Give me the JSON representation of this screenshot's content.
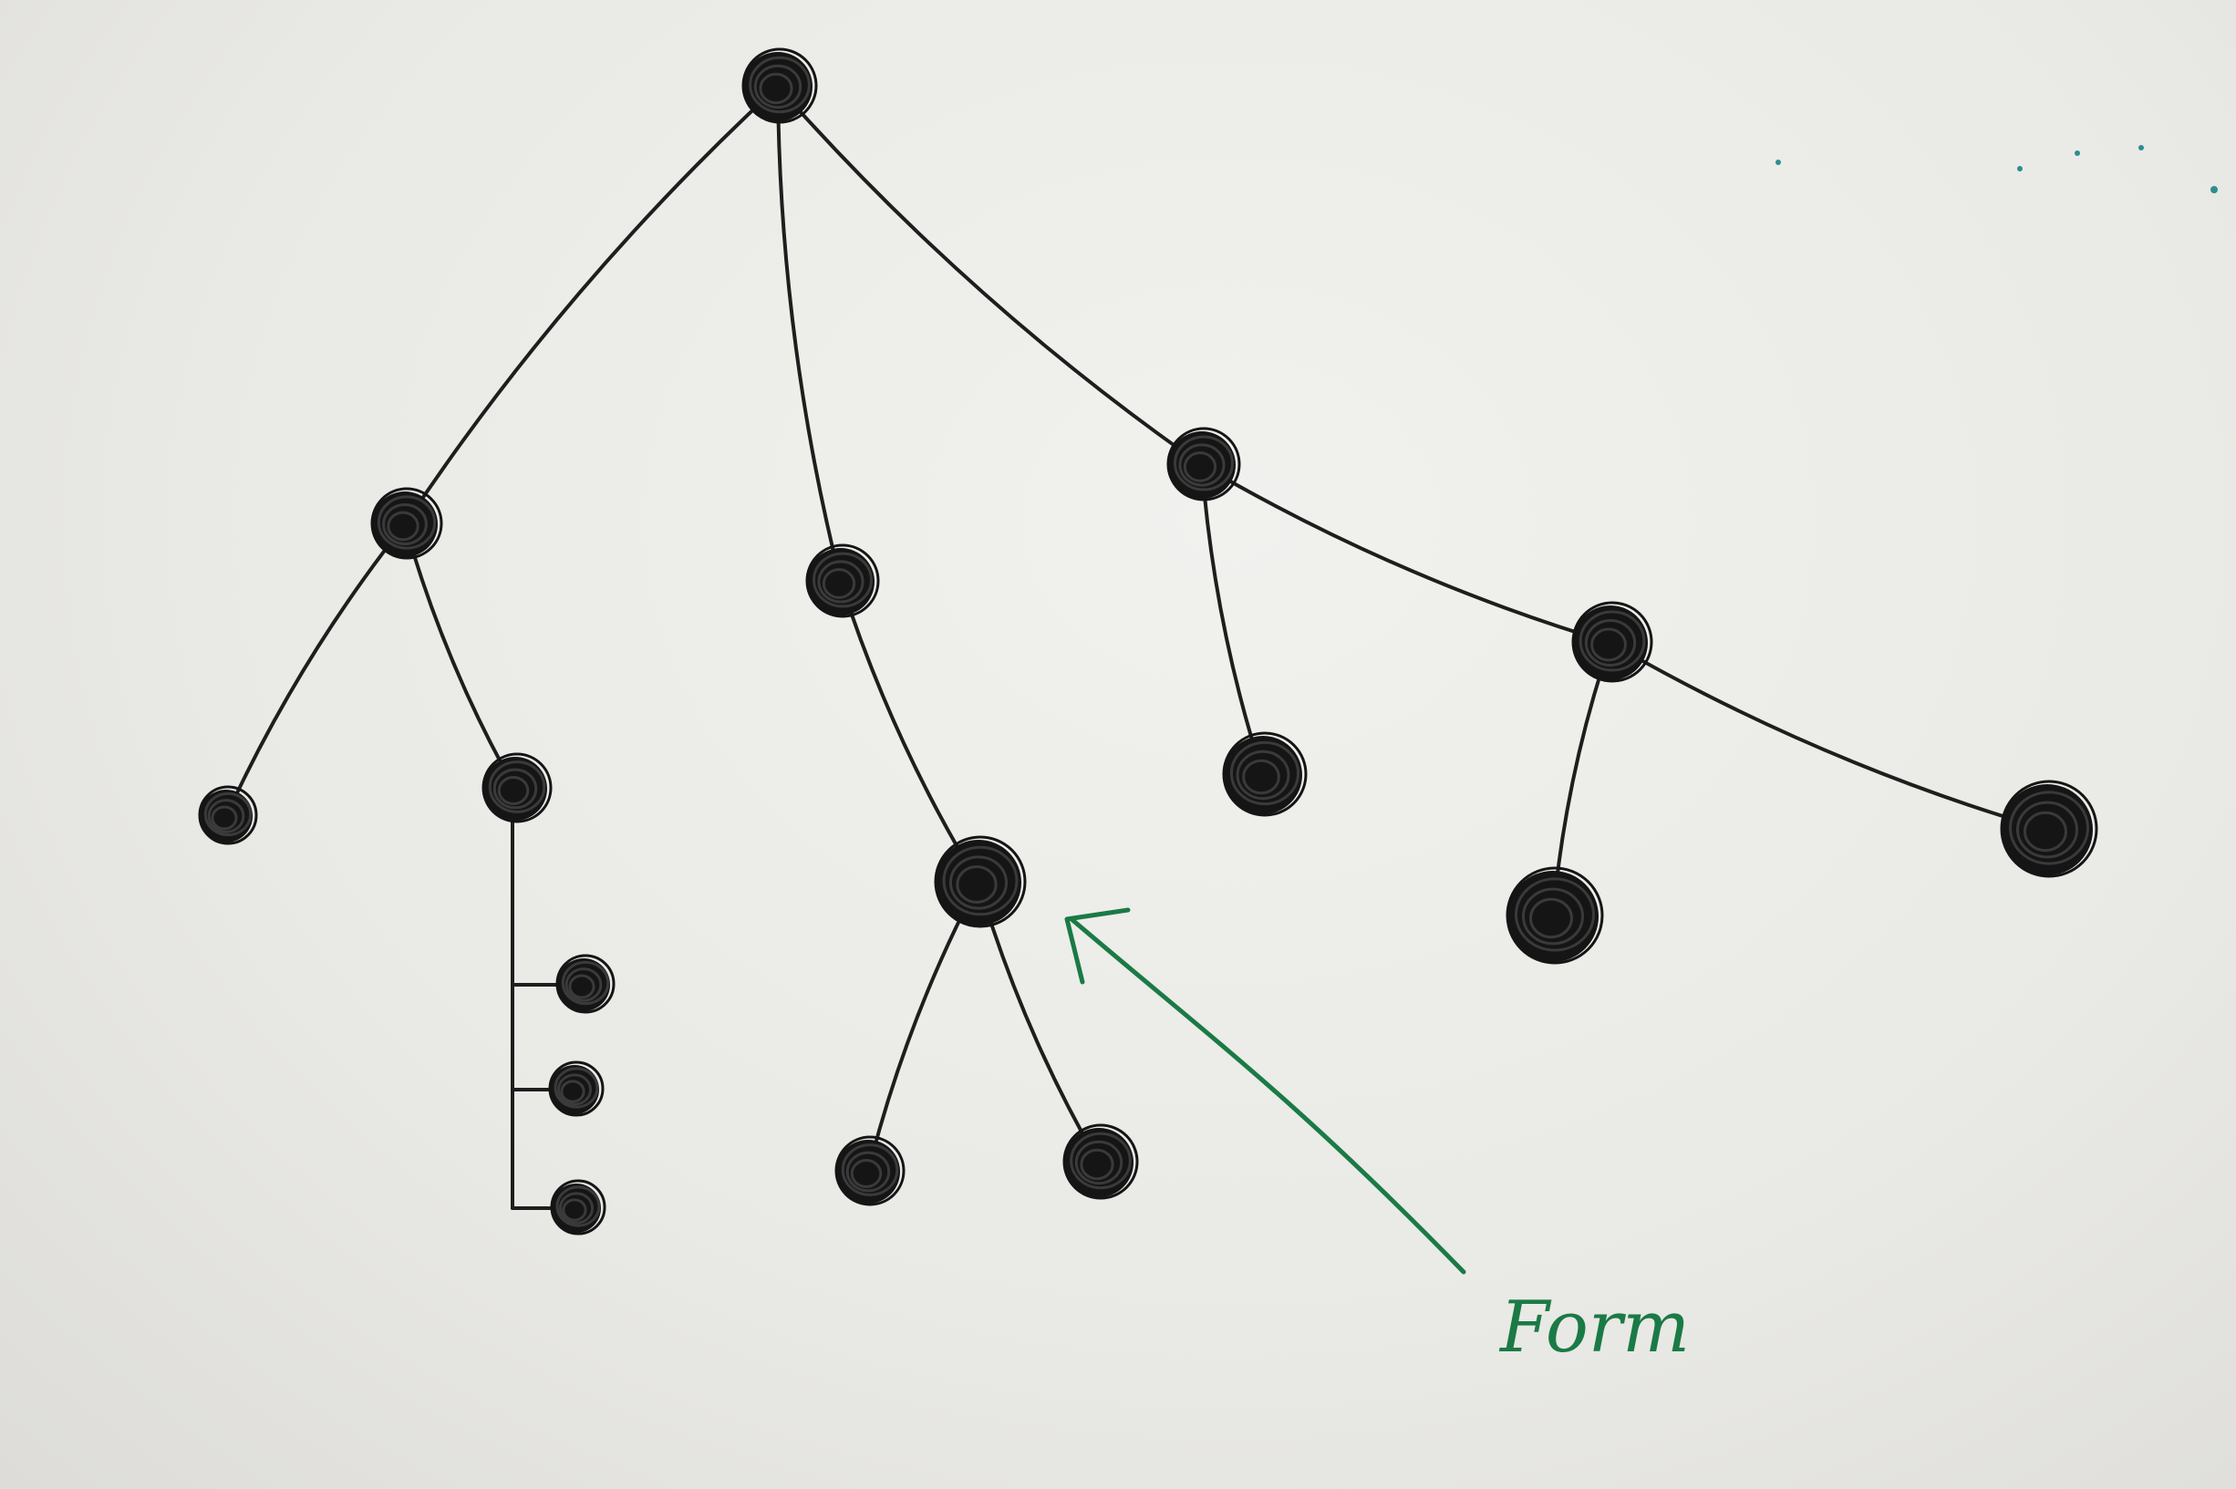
{
  "colors": {
    "ink": "#151515",
    "annotation": "#1a7a45",
    "paper": "#ecece9"
  },
  "annotation": {
    "label": "Form",
    "points_to_node": "n7"
  },
  "tree": {
    "nodes": [
      {
        "id": "n0"
      },
      {
        "id": "n1",
        "parent": "n0"
      },
      {
        "id": "n2",
        "parent": "n0"
      },
      {
        "id": "n3",
        "parent": "n0"
      },
      {
        "id": "n4",
        "parent": "n1"
      },
      {
        "id": "n5",
        "parent": "n1"
      },
      {
        "id": "n6",
        "parent": "n5"
      },
      {
        "id": "n7",
        "parent": "n2"
      },
      {
        "id": "n8",
        "parent": "n7"
      },
      {
        "id": "n9",
        "parent": "n7"
      },
      {
        "id": "n10",
        "parent": "n3"
      },
      {
        "id": "n11",
        "parent": "n3"
      },
      {
        "id": "n12",
        "parent": "n11"
      },
      {
        "id": "n13",
        "parent": "n11"
      },
      {
        "id": "n14",
        "parent": "n5"
      },
      {
        "id": "n15",
        "parent": "n5"
      }
    ]
  }
}
